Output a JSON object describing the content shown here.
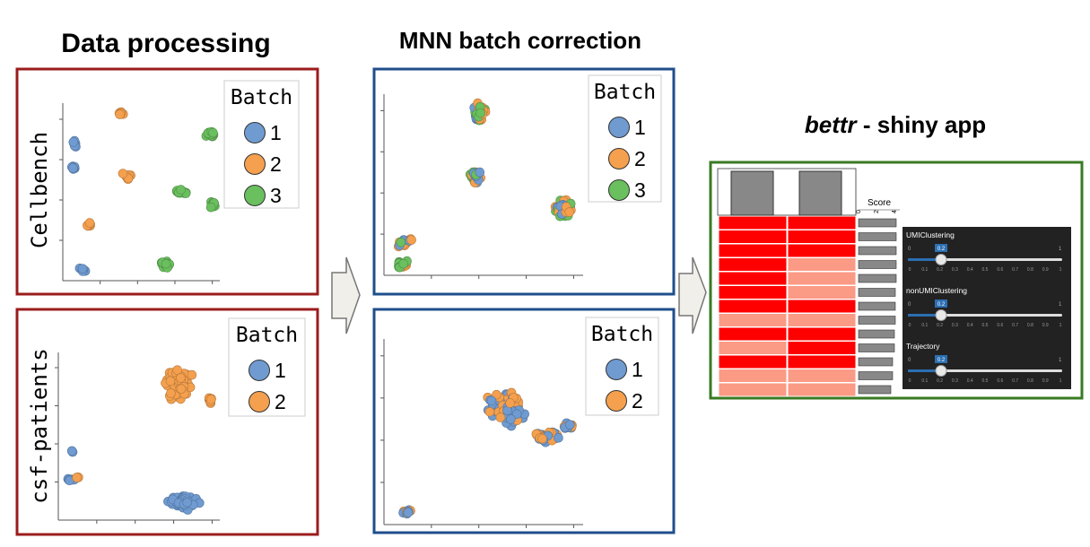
{
  "header": {
    "processing": "Data processing",
    "mnn": "MNN batch correction",
    "app_name": "bettr",
    "app_rest": " - shiny app"
  },
  "legend_title": "Batch",
  "datasets": [
    {
      "name": "Cellbench",
      "batches": [
        {
          "label": "1",
          "color": "#6f9bd1"
        },
        {
          "label": "2",
          "color": "#f4a04e"
        },
        {
          "label": "3",
          "color": "#6abf5e"
        }
      ]
    },
    {
      "name": "csf-patients",
      "batches": [
        {
          "label": "1",
          "color": "#6f9bd1"
        },
        {
          "label": "2",
          "color": "#f4a04e"
        }
      ]
    }
  ],
  "app": {
    "score_label": "Score",
    "score_ticks": [
      "0",
      "2",
      "4"
    ],
    "metrics": [
      "UMIClustering",
      "nonUMIClustering",
      "Trajectory"
    ],
    "slider_value": "0.2",
    "slider_ticks": [
      "0",
      "0.1",
      "0.2",
      "0.3",
      "0.4",
      "0.5",
      "0.6",
      "0.7",
      "0.8",
      "0.9",
      "1"
    ]
  }
}
